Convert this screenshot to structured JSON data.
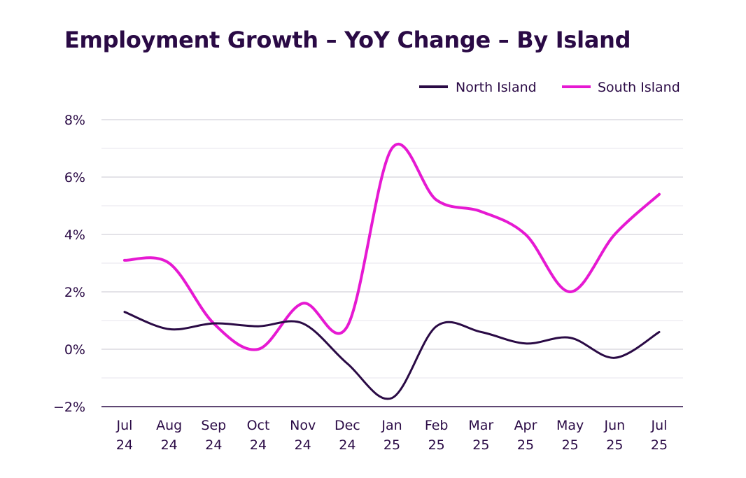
{
  "chart_data": {
    "type": "line",
    "title": "Employment Growth – YoY Change – By Island",
    "xlabel": "",
    "ylabel": "",
    "ylim": [
      -2,
      8
    ],
    "yticks": [
      -2,
      0,
      2,
      4,
      6,
      8
    ],
    "ytick_labels": [
      "−2%",
      "0%",
      "2%",
      "4%",
      "6%",
      "8%"
    ],
    "grid": true,
    "legend_position": "top-right",
    "categories": [
      [
        "Jul",
        "24"
      ],
      [
        "Aug",
        "24"
      ],
      [
        "Sep",
        "24"
      ],
      [
        "Oct",
        "24"
      ],
      [
        "Nov",
        "24"
      ],
      [
        "Dec",
        "24"
      ],
      [
        "Jan",
        "25"
      ],
      [
        "Feb",
        "25"
      ],
      [
        "Mar",
        "25"
      ],
      [
        "Apr",
        "25"
      ],
      [
        "May",
        "25"
      ],
      [
        "Jun",
        "25"
      ],
      [
        "Jul",
        "25"
      ]
    ],
    "series": [
      {
        "name": "North Island",
        "color": "#2a0a45",
        "values": [
          1.3,
          0.7,
          0.9,
          0.8,
          0.9,
          -0.5,
          -1.7,
          0.8,
          0.6,
          0.2,
          0.4,
          -0.3,
          0.6
        ]
      },
      {
        "name": "South Island",
        "color": "#e619d2",
        "values": [
          3.1,
          3.0,
          0.9,
          0.0,
          1.6,
          0.8,
          7.0,
          5.2,
          4.8,
          4.0,
          2.0,
          4.0,
          5.4
        ]
      }
    ]
  }
}
